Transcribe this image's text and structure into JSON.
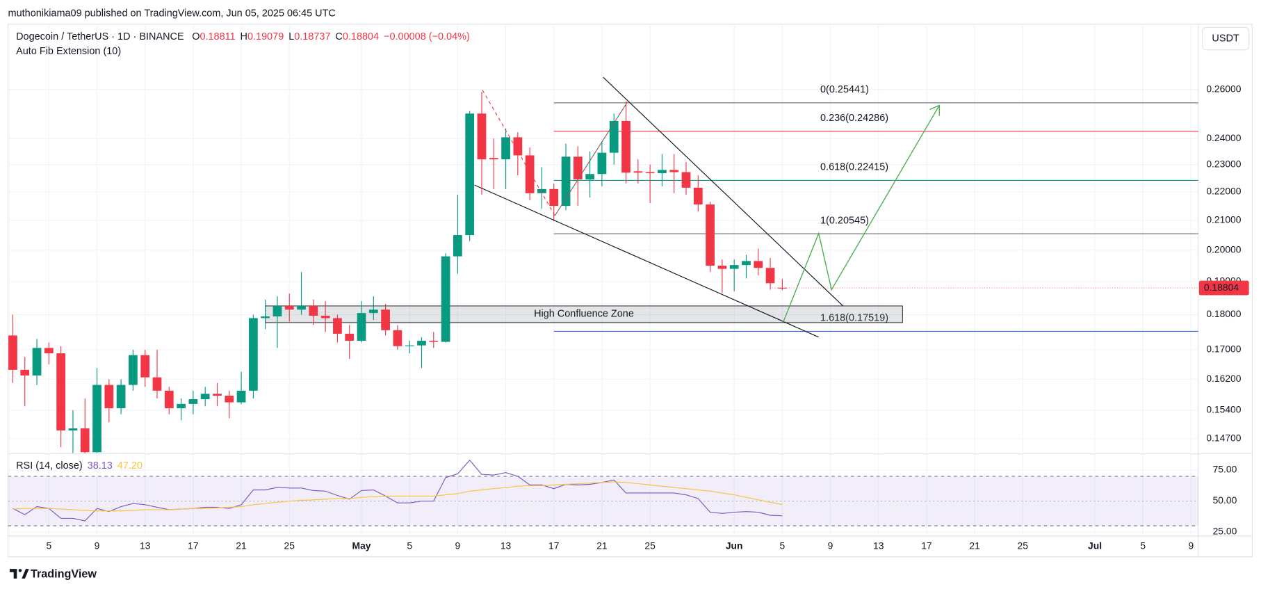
{
  "header": {
    "publisher": "muthonikiama09 published on TradingView.com, Jun 05, 2025 06:45 UTC",
    "symbol": "Dogecoin / TetherUS · 1D · BINANCE",
    "o_label": "O",
    "o": "0.18811",
    "h_label": "H",
    "h": "0.19079",
    "l_label": "L",
    "l": "0.18737",
    "c_label": "C",
    "c": "0.18804",
    "change": "−0.00008 (−0.04%)",
    "indicator": "Auto Fib Extension (10)",
    "currency": "USDT"
  },
  "footer": {
    "brand": "TradingView"
  },
  "chart_data": {
    "type": "candlestick",
    "log_scale": true,
    "grid": true,
    "up_color": "#089981",
    "down_color": "#f23645",
    "x": [
      "2025-04-02",
      "2025-04-03",
      "2025-04-04",
      "2025-04-05",
      "2025-04-06",
      "2025-04-07",
      "2025-04-08",
      "2025-04-09",
      "2025-04-10",
      "2025-04-11",
      "2025-04-12",
      "2025-04-13",
      "2025-04-14",
      "2025-04-15",
      "2025-04-16",
      "2025-04-17",
      "2025-04-18",
      "2025-04-19",
      "2025-04-20",
      "2025-04-21",
      "2025-04-22",
      "2025-04-23",
      "2025-04-24",
      "2025-04-25",
      "2025-04-26",
      "2025-04-27",
      "2025-04-28",
      "2025-04-29",
      "2025-04-30",
      "2025-05-01",
      "2025-05-02",
      "2025-05-03",
      "2025-05-04",
      "2025-05-05",
      "2025-05-06",
      "2025-05-07",
      "2025-05-08",
      "2025-05-09",
      "2025-05-10",
      "2025-05-11",
      "2025-05-12",
      "2025-05-13",
      "2025-05-14",
      "2025-05-15",
      "2025-05-16",
      "2025-05-17",
      "2025-05-18",
      "2025-05-19",
      "2025-05-20",
      "2025-05-21",
      "2025-05-22",
      "2025-05-23",
      "2025-05-24",
      "2025-05-25",
      "2025-05-26",
      "2025-05-27",
      "2025-05-28",
      "2025-05-29",
      "2025-05-30",
      "2025-05-31",
      "2025-06-01",
      "2025-06-02",
      "2025-06-03",
      "2025-06-04",
      "2025-06-05"
    ],
    "open": [
      0.174,
      0.1645,
      0.163,
      0.1705,
      0.169,
      0.149,
      0.1495,
      0.1438,
      0.1605,
      0.1545,
      0.1605,
      0.1685,
      0.1625,
      0.159,
      0.1545,
      0.1556,
      0.1568,
      0.1582,
      0.1577,
      0.156,
      0.159,
      0.179,
      0.1795,
      0.1826,
      0.1815,
      0.1826,
      0.1797,
      0.179,
      0.1745,
      0.1725,
      0.1805,
      0.1815,
      0.1755,
      0.171,
      0.1712,
      0.1725,
      0.1722,
      0.198,
      0.205,
      0.25,
      0.2325,
      0.232,
      0.2405,
      0.2335,
      0.2195,
      0.221,
      0.215,
      0.233,
      0.2245,
      0.2265,
      0.2345,
      0.247,
      0.2275,
      0.2272,
      0.2268,
      0.228,
      0.2272,
      0.2215,
      0.2155,
      0.195,
      0.194,
      0.1952,
      0.1965,
      0.1943,
      0.18811
    ],
    "high": [
      0.18,
      0.168,
      0.173,
      0.172,
      0.171,
      0.154,
      0.157,
      0.165,
      0.162,
      0.162,
      0.17,
      0.17,
      0.17,
      0.16,
      0.157,
      0.159,
      0.16,
      0.161,
      0.159,
      0.164,
      0.18,
      0.1845,
      0.1855,
      0.1863,
      0.193,
      0.1845,
      0.184,
      0.18,
      0.177,
      0.184,
      0.1855,
      0.1832,
      0.177,
      0.1725,
      0.1735,
      0.175,
      0.199,
      0.219,
      0.251,
      0.259,
      0.24,
      0.244,
      0.2425,
      0.2365,
      0.229,
      0.223,
      0.238,
      0.237,
      0.235,
      0.239,
      0.25,
      0.255,
      0.232,
      0.23,
      0.234,
      0.234,
      0.231,
      0.226,
      0.2165,
      0.197,
      0.197,
      0.1985,
      0.2005,
      0.1975,
      0.19079
    ],
    "low": [
      0.161,
      0.155,
      0.1605,
      0.166,
      0.145,
      0.1436,
      0.1436,
      0.1436,
      0.151,
      0.153,
      0.159,
      0.16,
      0.157,
      0.153,
      0.1515,
      0.153,
      0.155,
      0.155,
      0.152,
      0.1555,
      0.157,
      0.1758,
      0.1705,
      0.178,
      0.18,
      0.177,
      0.175,
      0.172,
      0.1675,
      0.172,
      0.1785,
      0.174,
      0.17,
      0.169,
      0.165,
      0.1705,
      0.172,
      0.1925,
      0.203,
      0.219,
      0.221,
      0.221,
      0.226,
      0.217,
      0.214,
      0.2097,
      0.2135,
      0.215,
      0.218,
      0.222,
      0.23,
      0.223,
      0.223,
      0.216,
      0.222,
      0.2195,
      0.219,
      0.213,
      0.193,
      0.1865,
      0.187,
      0.191,
      0.192,
      0.1875,
      0.18737
    ],
    "close": [
      0.1645,
      0.163,
      0.1705,
      0.169,
      0.149,
      0.1495,
      0.1438,
      0.1605,
      0.1545,
      0.1605,
      0.1685,
      0.1625,
      0.159,
      0.1545,
      0.1556,
      0.1568,
      0.1582,
      0.1577,
      0.156,
      0.159,
      0.179,
      0.1795,
      0.1826,
      0.1815,
      0.1826,
      0.1797,
      0.179,
      0.1745,
      0.1725,
      0.1805,
      0.1815,
      0.1755,
      0.171,
      0.1712,
      0.1725,
      0.1722,
      0.198,
      0.205,
      0.25,
      0.232,
      0.232,
      0.2405,
      0.2335,
      0.2195,
      0.221,
      0.215,
      0.233,
      0.2245,
      0.2265,
      0.2345,
      0.247,
      0.227,
      0.227,
      0.2268,
      0.228,
      0.2272,
      0.2215,
      0.2155,
      0.195,
      0.194,
      0.1952,
      0.1965,
      0.1943,
      0.1895,
      0.18804
    ],
    "xlim": [
      "2025-04-01",
      "2025-07-10"
    ],
    "xticks": [
      {
        "value": "2025-04-05",
        "label": "5"
      },
      {
        "value": "2025-04-09",
        "label": "9"
      },
      {
        "value": "2025-04-13",
        "label": "13"
      },
      {
        "value": "2025-04-17",
        "label": "17"
      },
      {
        "value": "2025-04-21",
        "label": "21"
      },
      {
        "value": "2025-04-25",
        "label": "25"
      },
      {
        "value": "2025-05-01",
        "label": "May"
      },
      {
        "value": "2025-05-05",
        "label": "5"
      },
      {
        "value": "2025-05-09",
        "label": "9"
      },
      {
        "value": "2025-05-13",
        "label": "13"
      },
      {
        "value": "2025-05-17",
        "label": "17"
      },
      {
        "value": "2025-05-21",
        "label": "21"
      },
      {
        "value": "2025-05-25",
        "label": "25"
      },
      {
        "value": "2025-06-01",
        "label": "Jun"
      },
      {
        "value": "2025-06-05",
        "label": "5"
      },
      {
        "value": "2025-06-09",
        "label": "9"
      },
      {
        "value": "2025-06-13",
        "label": "13"
      },
      {
        "value": "2025-06-17",
        "label": "17"
      },
      {
        "value": "2025-06-21",
        "label": "21"
      },
      {
        "value": "2025-06-25",
        "label": "25"
      },
      {
        "value": "2025-07-01",
        "label": "Jul"
      },
      {
        "value": "2025-07-05",
        "label": "5"
      },
      {
        "value": "2025-07-09",
        "label": "9"
      }
    ],
    "ylim": [
      0.1438,
      0.2893
    ],
    "yticks": [
      {
        "value": 0.26,
        "label": "0.26000"
      },
      {
        "value": 0.24,
        "label": "0.24000"
      },
      {
        "value": 0.23,
        "label": "0.23000"
      },
      {
        "value": 0.22,
        "label": "0.22000"
      },
      {
        "value": 0.21,
        "label": "0.21000"
      },
      {
        "value": 0.2,
        "label": "0.20000"
      },
      {
        "value": 0.19,
        "label": "0.19000"
      },
      {
        "value": 0.18,
        "label": "0.18000"
      },
      {
        "value": 0.17,
        "label": "0.17000"
      },
      {
        "value": 0.162,
        "label": "0.16200"
      },
      {
        "value": 0.154,
        "label": "0.15400"
      },
      {
        "value": 0.147,
        "label": "0.14700"
      }
    ],
    "last_price": {
      "value": 0.18804,
      "label": "0.18804",
      "color": "#f23645"
    },
    "fib_start": "2025-05-17",
    "fib_levels": [
      {
        "label": "0(0.25441)",
        "value": 0.25441,
        "color": "#787b86"
      },
      {
        "label": "0.236(0.24286)",
        "value": 0.24286,
        "color": "#f23645"
      },
      {
        "label": "0.618(0.22415)",
        "value": 0.22415,
        "color": "#089981"
      },
      {
        "label": "1(0.20545)",
        "value": 0.20545,
        "color": "#787b86"
      },
      {
        "label": "1.618(0.17519)",
        "value": 0.17519,
        "color": "#2962ff"
      }
    ],
    "zone": {
      "label": "High Confluence Zone",
      "top": 0.1826,
      "bottom": 0.1777,
      "start": "2025-04-23",
      "end": "2025-06-15"
    },
    "rsi": {
      "title": "RSI (14, close)",
      "legend_values": [
        "38.13",
        "47.20"
      ],
      "ylim": [
        22.5,
        87.5
      ],
      "yticks": [
        {
          "value": 75,
          "label": "75.00"
        },
        {
          "value": 50,
          "label": "50.00"
        },
        {
          "value": 25,
          "label": "25.00"
        }
      ],
      "bands": [
        70,
        30
      ],
      "series": [
        {
          "name": "RSI",
          "color": "#7e57c2",
          "values": [
            44,
            39,
            45.5,
            44,
            36,
            36,
            34,
            44,
            41.5,
            45.5,
            48,
            47,
            45,
            43,
            43.5,
            44,
            45,
            45,
            44,
            47,
            59,
            59,
            61,
            60.5,
            60.5,
            58.5,
            58,
            54.5,
            51.5,
            58.5,
            59,
            54,
            48.5,
            48.5,
            50,
            50,
            69,
            72,
            83,
            71.5,
            71,
            73,
            70,
            63,
            63,
            60,
            63.5,
            63,
            63.5,
            65,
            67,
            56.5,
            56.5,
            56.5,
            56.5,
            56.5,
            55,
            52,
            41,
            40,
            41,
            41.5,
            41,
            38.5,
            38.13
          ]
        },
        {
          "name": "RSI MA",
          "color": "#f7c43b",
          "values": [
            43.5,
            44,
            44,
            44,
            43.5,
            43,
            42.5,
            42,
            42,
            42,
            42.5,
            43,
            43,
            43,
            43.5,
            44,
            44,
            44.5,
            45,
            45.5,
            47,
            48,
            49,
            50,
            50.5,
            51,
            51.5,
            52,
            52,
            53,
            53.5,
            54,
            54,
            54,
            54,
            54,
            55,
            56,
            58,
            59,
            60,
            61,
            62,
            62.5,
            62.5,
            63,
            63.5,
            64,
            64.5,
            65,
            65.5,
            65,
            64,
            63,
            62,
            61,
            60,
            59,
            58,
            56.5,
            55,
            53,
            51,
            49,
            47.2
          ]
        }
      ]
    }
  }
}
